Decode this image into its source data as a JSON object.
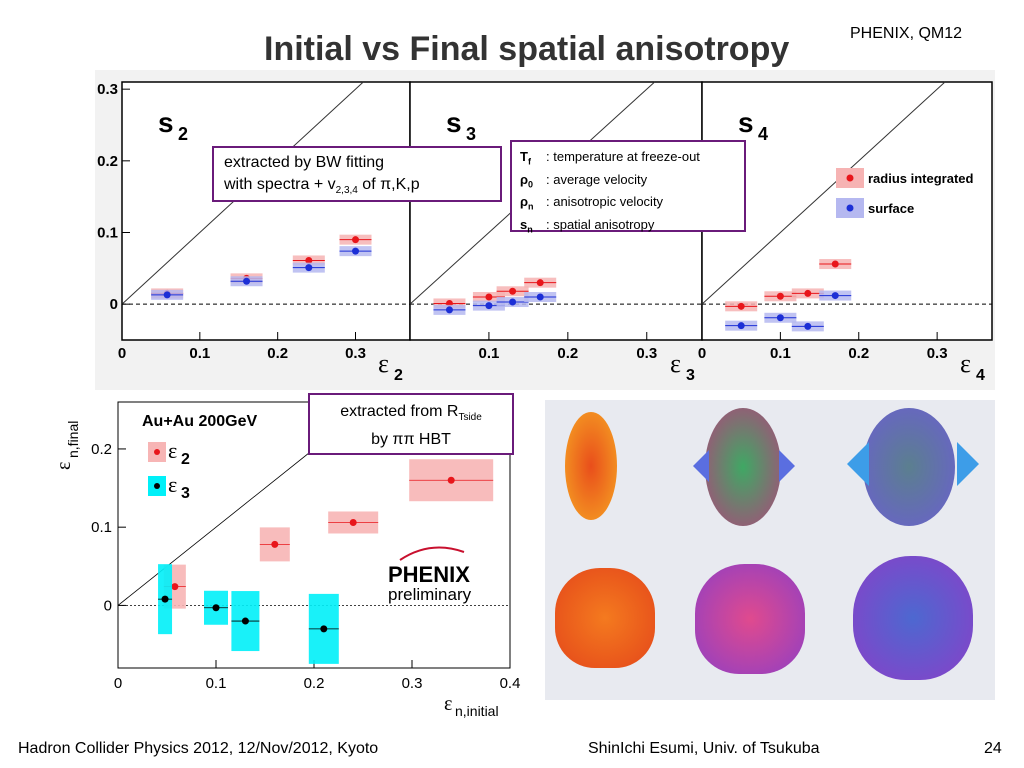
{
  "slide": {
    "title": "Initial vs Final spatial anisotropy",
    "conference": "PHENIX, QM12",
    "footer_left": "Hadron Collider Physics 2012, 12/Nov/2012, Kyoto",
    "footer_center": "ShinIchi Esumi, Univ. of Tsukuba",
    "page_number": "24"
  },
  "boxes": {
    "bw_line1": "extracted by BW fitting",
    "bw_line2_prefix": "with spectra + v",
    "bw_line2_sub": "2,3,4",
    "bw_line2_suffix": " of π,K,p",
    "defs": [
      {
        "sym": "T",
        "sub": "f",
        "desc": ": temperature at freeze-out"
      },
      {
        "sym": "ρ",
        "sub": "0",
        "desc": ": average velocity"
      },
      {
        "sym": "ρ",
        "sub": "n",
        "desc": ": anisotropic velocity"
      },
      {
        "sym": "s",
        "sub": "n",
        "desc": ": spatial anisotropy"
      }
    ],
    "hbt_line1_prefix": "extracted from R",
    "hbt_line1_sub": "Tside",
    "hbt_line2": "by ππ HBT"
  },
  "chart_data": [
    {
      "type": "scatter",
      "panel": "s2",
      "label": "s2",
      "xlabel": "ε2",
      "xlim": [
        0,
        0.37
      ],
      "ylim": [
        -0.05,
        0.31
      ],
      "xticks": [
        "0",
        "0.1",
        "0.2",
        "0.3"
      ],
      "yticks": [
        "0",
        "0.1",
        "0.2",
        "0.3"
      ],
      "series": [
        {
          "name": "radius integrated",
          "color": "#e8161b",
          "points": [
            [
              0.058,
              0.015
            ],
            [
              0.16,
              0.036
            ],
            [
              0.24,
              0.061
            ],
            [
              0.3,
              0.09
            ]
          ]
        },
        {
          "name": "surface",
          "color": "#1c2fd6",
          "points": [
            [
              0.058,
              0.013
            ],
            [
              0.16,
              0.032
            ],
            [
              0.24,
              0.051
            ],
            [
              0.3,
              0.074
            ]
          ]
        }
      ]
    },
    {
      "type": "scatter",
      "panel": "s3",
      "label": "s3",
      "xlabel": "ε3",
      "xlim": [
        0,
        0.37
      ],
      "ylim": [
        -0.05,
        0.31
      ],
      "xticks": [
        "0.1",
        "0.2",
        "0.3"
      ],
      "series": [
        {
          "name": "radius integrated",
          "color": "#e8161b",
          "points": [
            [
              0.05,
              0.001
            ],
            [
              0.1,
              0.01
            ],
            [
              0.13,
              0.018
            ],
            [
              0.165,
              0.03
            ]
          ]
        },
        {
          "name": "surface",
          "color": "#1c2fd6",
          "points": [
            [
              0.05,
              -0.008
            ],
            [
              0.1,
              -0.002
            ],
            [
              0.13,
              0.003
            ],
            [
              0.165,
              0.01
            ]
          ]
        }
      ]
    },
    {
      "type": "scatter",
      "panel": "s4",
      "label": "s4",
      "xlabel": "ε4",
      "xlim": [
        0,
        0.37
      ],
      "ylim": [
        -0.05,
        0.31
      ],
      "xticks": [
        "0",
        "0.1",
        "0.2",
        "0.3"
      ],
      "legend": [
        "radius integrated",
        "surface"
      ],
      "series": [
        {
          "name": "radius integrated",
          "color": "#e8161b",
          "points": [
            [
              0.05,
              -0.003
            ],
            [
              0.1,
              0.011
            ],
            [
              0.135,
              0.015
            ],
            [
              0.17,
              0.056
            ]
          ]
        },
        {
          "name": "surface",
          "color": "#1c2fd6",
          "points": [
            [
              0.05,
              -0.03
            ],
            [
              0.1,
              -0.019
            ],
            [
              0.135,
              -0.031
            ],
            [
              0.17,
              0.012
            ]
          ]
        }
      ]
    },
    {
      "type": "scatter",
      "panel": "au-au",
      "title": "Au+Au 200GeV",
      "xlabel": "εn,initial",
      "ylabel": "εn,final",
      "xlim": [
        0,
        0.4
      ],
      "ylim": [
        -0.08,
        0.26
      ],
      "xticks": [
        "0",
        "0.1",
        "0.2",
        "0.3",
        "0.4"
      ],
      "yticks": [
        "0",
        "0.1",
        "0.2"
      ],
      "legend": [
        "ε2",
        "ε3"
      ],
      "series": [
        {
          "name": "ε2",
          "color": "#e8161b",
          "box_color": "#f7b5b5",
          "points": [
            [
              0.058,
              0.024
            ],
            [
              0.16,
              0.078
            ],
            [
              0.24,
              0.106
            ],
            [
              0.34,
              0.16
            ]
          ]
        },
        {
          "name": "ε3",
          "color": "#000000",
          "box_color": "#00f0f8",
          "points": [
            [
              0.048,
              0.008
            ],
            [
              0.1,
              -0.003
            ],
            [
              0.13,
              -0.02
            ],
            [
              0.21,
              -0.03
            ]
          ]
        }
      ]
    }
  ],
  "logo": {
    "brand": "PHENIX",
    "subtitle": "preliminary"
  }
}
